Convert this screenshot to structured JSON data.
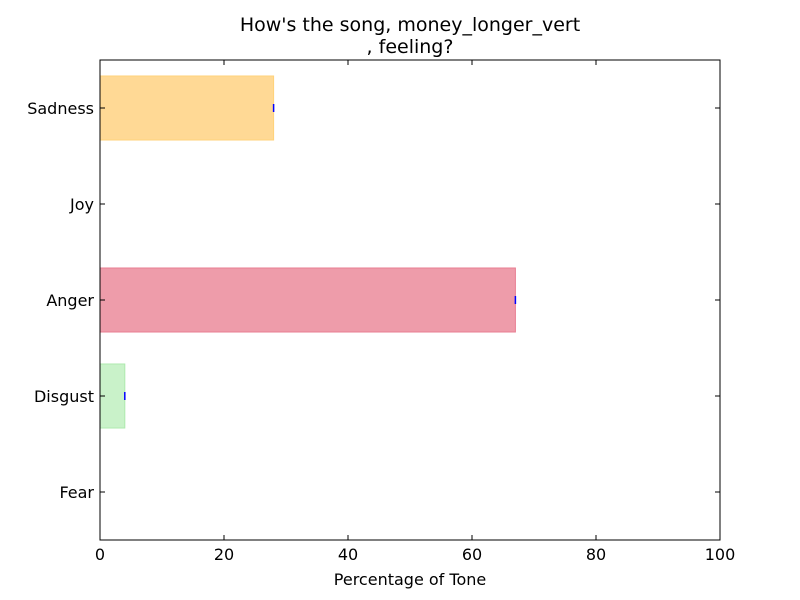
{
  "chart_data": {
    "type": "bar",
    "orientation": "horizontal",
    "title_line1": "How's the song, money_longer_vert",
    "title_line2": ", feeling?",
    "xlabel": "Percentage of Tone",
    "ylabel": "",
    "xlim": [
      0,
      100
    ],
    "xticks": [
      0,
      20,
      40,
      60,
      80,
      100
    ],
    "xtick_labels": [
      "0",
      "20",
      "40",
      "60",
      "80",
      "100"
    ],
    "grid": false,
    "legend": "none",
    "categories": [
      "Sadness",
      "Joy",
      "Anger",
      "Disgust",
      "Fear"
    ],
    "values": [
      28,
      0,
      67,
      4,
      0
    ],
    "colors": [
      "#ffd995",
      "#fff59d",
      "#ee9caa",
      "#c9f2c9",
      "#b3d9ff"
    ],
    "edge_colors": [
      "#ffd27a",
      "#fff176",
      "#e87e92",
      "#aeeaae",
      "#90caf9"
    ],
    "errorbar_color": "#0000ff"
  }
}
